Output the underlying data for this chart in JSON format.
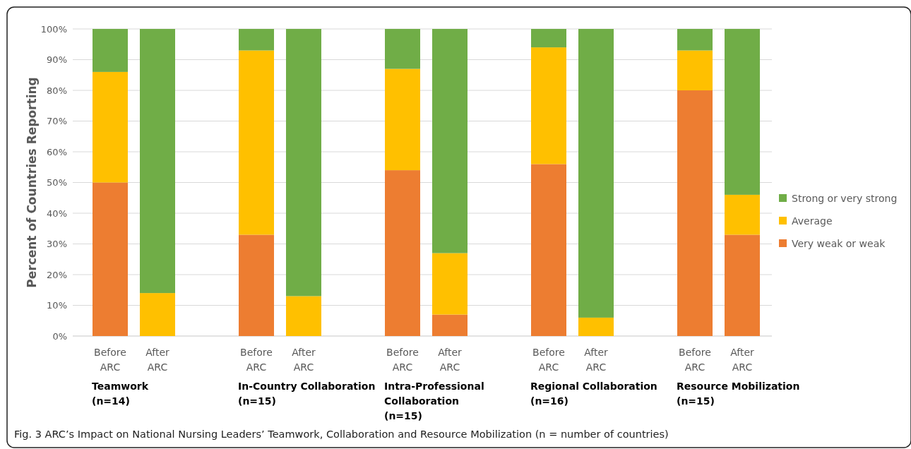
{
  "chart_data": {
    "type": "bar",
    "stacked": true,
    "title": "Fig. 3 ARC’s Impact on National Nursing Leaders’ Teamwork, Collaboration and Resource Mobilization (n = number of countries)",
    "ylabel": "Percent of Countries Reporting",
    "categories": [
      "Before ARC",
      "After ARC",
      "Before ARC",
      "After ARC",
      "Before ARC",
      "After ARC",
      "Before ARC",
      "After ARC",
      "Before ARC",
      "After ARC"
    ],
    "series": [
      {
        "name": "Very weak or weak",
        "color": "#ed7d31",
        "values": [
          50,
          0,
          33,
          0,
          54,
          7,
          56,
          0,
          80,
          33
        ]
      },
      {
        "name": "Average",
        "color": "#ffc000",
        "values": [
          36,
          14,
          60,
          13,
          33,
          20,
          38,
          6,
          13,
          13
        ]
      },
      {
        "name": "Strong or very strong",
        "color": "#70ad47",
        "values": [
          14,
          86,
          7,
          87,
          13,
          73,
          6,
          94,
          7,
          54
        ]
      }
    ],
    "ylim": [
      0,
      100
    ],
    "yticks": [
      {
        "value": 0,
        "label": "0%"
      },
      {
        "value": 10,
        "label": "10%"
      },
      {
        "value": 20,
        "label": "20%"
      },
      {
        "value": 30,
        "label": "30%"
      },
      {
        "value": 40,
        "label": "40%"
      },
      {
        "value": 50,
        "label": "50%"
      },
      {
        "value": 60,
        "label": "60%"
      },
      {
        "value": 70,
        "label": "70%"
      },
      {
        "value": 80,
        "label": "80%"
      },
      {
        "value": 90,
        "label": "90%"
      },
      {
        "value": 100,
        "label": "100%"
      }
    ],
    "grid": "y",
    "legend": "right",
    "annotations": [
      "Teamwork\n(n=14)",
      "In-Country Collaboration\n(n=15)",
      "Intra-Professional\nCollaboration\n(n=15)",
      "Regional Collaboration\n(n=16)",
      "Resource Mobilization\n(n=15)"
    ]
  }
}
